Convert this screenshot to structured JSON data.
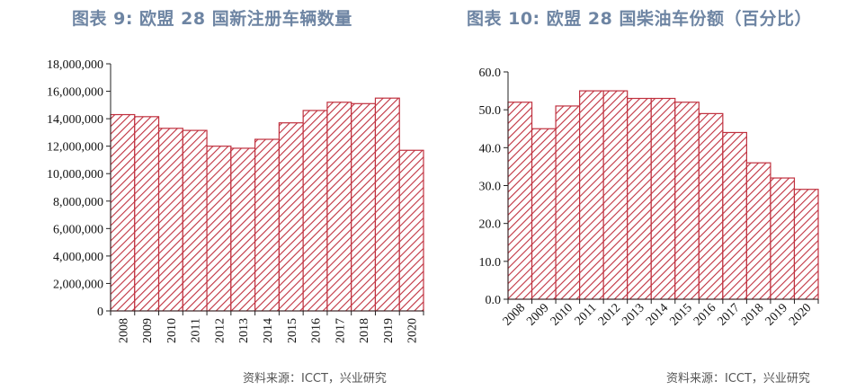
{
  "left": {
    "title": "图表 9:  欧盟 28 国新注册车辆数量",
    "source": "资料来源：ICCT，兴业研究"
  },
  "right": {
    "title": "图表 10: 欧盟 28 国柴油车份额（百分比）",
    "source": "资料来源：ICCT，兴业研究"
  },
  "colors": {
    "bar_stroke": "#c0313f",
    "title": "#6e85a3",
    "axis": "#222222"
  },
  "chart_data": [
    {
      "type": "bar",
      "title": "图表 9:  欧盟 28 国新注册车辆数量",
      "categories": [
        "2008",
        "2009",
        "2010",
        "2011",
        "2012",
        "2013",
        "2014",
        "2015",
        "2016",
        "2017",
        "2018",
        "2019",
        "2020"
      ],
      "values": [
        14300000,
        14150000,
        13300000,
        13150000,
        12000000,
        11850000,
        12500000,
        13700000,
        14600000,
        15200000,
        15100000,
        15500000,
        11700000
      ],
      "ylim": [
        0,
        18000000
      ],
      "yticks": [
        0,
        2000000,
        4000000,
        6000000,
        8000000,
        10000000,
        12000000,
        14000000,
        16000000,
        18000000
      ],
      "ytick_labels": [
        "0",
        "2,000,000",
        "4,000,000",
        "6,000,000",
        "8,000,000",
        "10,000,000",
        "12,000,000",
        "14,000,000",
        "16,000,000",
        "18,000,000"
      ],
      "xlabel": "",
      "ylabel": "",
      "grid": false,
      "pattern": "diagonal-hatch"
    },
    {
      "type": "bar",
      "title": "图表 10: 欧盟 28 国柴油车份额（百分比）",
      "categories": [
        "2008",
        "2009",
        "2010",
        "2011",
        "2012",
        "2013",
        "2014",
        "2015",
        "2016",
        "2017",
        "2018",
        "2019",
        "2020"
      ],
      "values": [
        52,
        45,
        51,
        55,
        55,
        53,
        53,
        52,
        49,
        44,
        36,
        32,
        29
      ],
      "ylim": [
        0,
        60
      ],
      "yticks": [
        0,
        10,
        20,
        30,
        40,
        50,
        60
      ],
      "ytick_labels": [
        "0.0",
        "10.0",
        "20.0",
        "30.0",
        "40.0",
        "50.0",
        "60.0"
      ],
      "xlabel": "",
      "ylabel": "",
      "grid": false,
      "pattern": "diagonal-hatch"
    }
  ]
}
